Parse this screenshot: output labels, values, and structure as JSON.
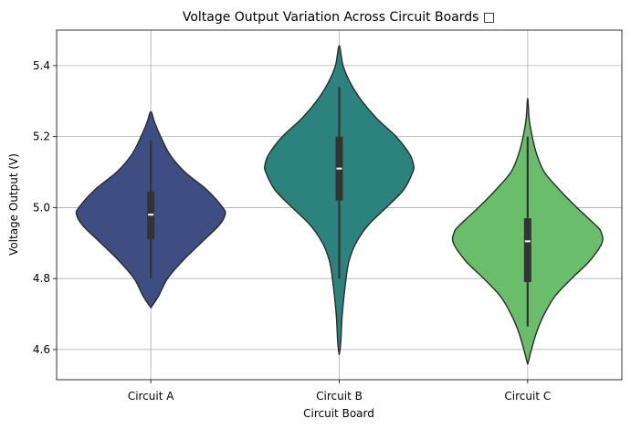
{
  "chart_data": {
    "type": "violin",
    "title": "Voltage Output Variation Across Circuit Boards □",
    "xlabel": "Circuit Board",
    "ylabel": "Voltage Output (V)",
    "ylim": [
      4.515,
      5.5
    ],
    "yticks": [
      "4.6",
      "4.8",
      "5.0",
      "5.2",
      "5.4"
    ],
    "grid": true,
    "categories": [
      "Circuit A",
      "Circuit B",
      "Circuit C"
    ],
    "series": [
      {
        "category": "Circuit A",
        "color": "#3f4e82",
        "min": 4.718,
        "max": 5.27,
        "q1": 4.91,
        "median": 4.98,
        "q3": 5.045,
        "whisker_low": 4.8,
        "whisker_high": 5.19,
        "density": [
          [
            4.718,
            0.0
          ],
          [
            4.75,
            0.1
          ],
          [
            4.8,
            0.22
          ],
          [
            4.85,
            0.42
          ],
          [
            4.9,
            0.66
          ],
          [
            4.95,
            0.9
          ],
          [
            4.98,
            0.98
          ],
          [
            5.0,
            0.95
          ],
          [
            5.05,
            0.74
          ],
          [
            5.1,
            0.45
          ],
          [
            5.15,
            0.25
          ],
          [
            5.2,
            0.13
          ],
          [
            5.24,
            0.05
          ],
          [
            5.27,
            0.0
          ]
        ]
      },
      {
        "category": "Circuit B",
        "color": "#2c837d",
        "min": 4.585,
        "max": 5.456,
        "q1": 5.02,
        "median": 5.11,
        "q3": 5.2,
        "whisker_low": 4.8,
        "whisker_high": 5.34,
        "density": [
          [
            4.585,
            0.0
          ],
          [
            4.62,
            0.02
          ],
          [
            4.7,
            0.04
          ],
          [
            4.8,
            0.09
          ],
          [
            4.85,
            0.13
          ],
          [
            4.9,
            0.22
          ],
          [
            4.95,
            0.38
          ],
          [
            5.0,
            0.62
          ],
          [
            5.05,
            0.85
          ],
          [
            5.1,
            0.97
          ],
          [
            5.12,
            0.98
          ],
          [
            5.15,
            0.93
          ],
          [
            5.2,
            0.75
          ],
          [
            5.25,
            0.5
          ],
          [
            5.3,
            0.3
          ],
          [
            5.35,
            0.15
          ],
          [
            5.4,
            0.05
          ],
          [
            5.456,
            0.0
          ]
        ]
      },
      {
        "category": "Circuit C",
        "color": "#6abe6b",
        "min": 4.558,
        "max": 5.308,
        "q1": 4.79,
        "median": 4.905,
        "q3": 4.97,
        "whisker_low": 4.665,
        "whisker_high": 5.2,
        "density": [
          [
            4.558,
            0.0
          ],
          [
            4.6,
            0.05
          ],
          [
            4.65,
            0.12
          ],
          [
            4.7,
            0.22
          ],
          [
            4.75,
            0.36
          ],
          [
            4.8,
            0.58
          ],
          [
            4.85,
            0.82
          ],
          [
            4.9,
            0.98
          ],
          [
            4.93,
            0.97
          ],
          [
            4.95,
            0.9
          ],
          [
            5.0,
            0.65
          ],
          [
            5.05,
            0.42
          ],
          [
            5.1,
            0.22
          ],
          [
            5.15,
            0.12
          ],
          [
            5.2,
            0.06
          ],
          [
            5.25,
            0.02
          ],
          [
            5.308,
            0.0
          ]
        ]
      }
    ]
  }
}
